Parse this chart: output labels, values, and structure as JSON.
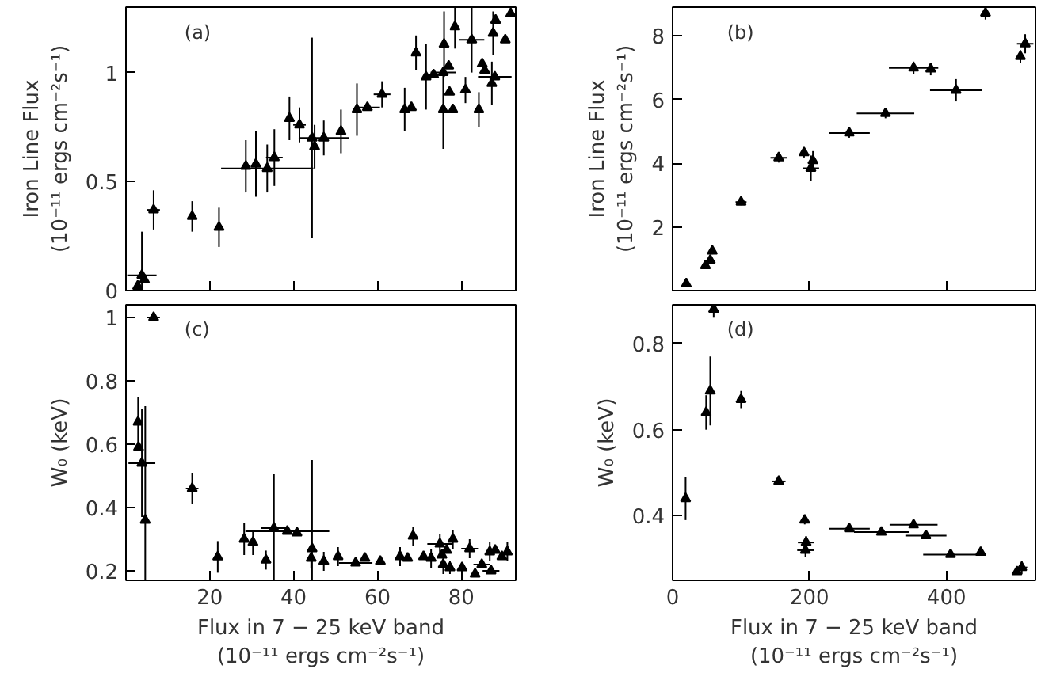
{
  "chart_data": [
    {
      "type": "scatter",
      "ylabel": "Iron Line Flux\n(10⁻¹¹ ergs cm⁻²s⁻¹)",
      "annotations": [
        "(a)"
      ],
      "xlim": [
        0,
        93
      ],
      "xticks": [
        20,
        40,
        60,
        80
      ],
      "ylim": [
        0,
        1.3
      ],
      "yticks": [
        0,
        0.5,
        1
      ],
      "tick_labels": "y",
      "grid": false,
      "marker": "triangle",
      "series": [
        {
          "color": "#000000",
          "x": [
            2.8,
            3.8,
            4.4,
            6.6,
            15.8,
            22.2,
            28.6,
            31.0,
            33.7,
            35.4,
            39.0,
            41.4,
            44.4,
            45.0,
            47.2,
            51.3,
            55.1,
            57.6,
            61.1,
            66.5,
            68.1,
            69.2,
            71.6,
            73.4,
            75.7,
            75.9,
            75.7,
            77.0,
            77.2,
            78.0,
            78.5,
            81.0,
            82.5,
            84.2,
            85.0,
            85.6,
            87.3,
            87.6,
            88.2,
            88.0,
            90.5,
            91.8
          ],
          "values": [
            0.02,
            0.07,
            0.05,
            0.37,
            0.34,
            0.29,
            0.57,
            0.58,
            0.56,
            0.61,
            0.79,
            0.76,
            0.7,
            0.66,
            0.7,
            0.73,
            0.83,
            0.84,
            0.9,
            0.83,
            0.84,
            1.09,
            0.98,
            0.99,
            0.83,
            1.13,
            1.0,
            1.03,
            0.91,
            0.83,
            1.21,
            0.92,
            1.15,
            0.83,
            1.04,
            1.01,
            0.95,
            1.18,
            1.24,
            0.98,
            1.15,
            1.27
          ],
          "errors": [
            null,
            0.2,
            null,
            0.09,
            0.07,
            0.09,
            0.12,
            0.15,
            0.11,
            0.13,
            0.1,
            0.08,
            0.46,
            0.1,
            0.08,
            0.1,
            0.12,
            null,
            0.06,
            0.1,
            null,
            0.08,
            0.15,
            null,
            0.18,
            0.15,
            null,
            null,
            null,
            null,
            0.1,
            0.06,
            0.15,
            0.08,
            null,
            null,
            0.1,
            0.1,
            null,
            null,
            null,
            null
          ],
          "xerrors": [
            null,
            3.5,
            null,
            1.5,
            null,
            null,
            null,
            null,
            11,
            2,
            null,
            1.5,
            null,
            null,
            6,
            null,
            null,
            3,
            2,
            null,
            null,
            null,
            null,
            2,
            null,
            null,
            3,
            null,
            null,
            null,
            null,
            null,
            3,
            null,
            null,
            null,
            null,
            null,
            null,
            4,
            null,
            null
          ]
        }
      ]
    },
    {
      "type": "scatter",
      "ylabel": "Iron Line Flux\n(10⁻¹¹ ergs cm⁻²s⁻¹)",
      "annotations": [
        "(b)"
      ],
      "xlim": [
        0,
        530
      ],
      "xticks": [
        0,
        200,
        400
      ],
      "ylim": [
        0,
        8.9
      ],
      "yticks": [
        2,
        4,
        6,
        8
      ],
      "tick_labels": "y",
      "grid": false,
      "marker": "triangle",
      "series": [
        {
          "color": "#000000",
          "x": [
            20,
            48,
            55,
            58,
            100,
            155,
            192,
            202,
            205,
            258,
            311,
            352,
            377,
            414,
            457,
            508,
            515
          ],
          "values": [
            0.21,
            0.78,
            0.95,
            1.24,
            2.78,
            4.17,
            4.33,
            3.84,
            4.08,
            4.95,
            5.56,
            6.99,
            6.96,
            6.29,
            8.71,
            7.35,
            7.75
          ],
          "errors": [
            null,
            null,
            null,
            0.1,
            0.1,
            0.15,
            0.15,
            0.4,
            0.3,
            0.15,
            0.15,
            0.2,
            0.2,
            0.35,
            0.2,
            0.2,
            0.3
          ],
          "xerrors": [
            null,
            5,
            null,
            null,
            8,
            12,
            null,
            12,
            null,
            30,
            42,
            36,
            null,
            38,
            null,
            null,
            12
          ]
        }
      ]
    },
    {
      "type": "scatter",
      "ylabel": "W₀ (keV)",
      "xlabel": "Flux in 7 − 25 keV band\n(10⁻¹¹ ergs cm⁻²s⁻¹)",
      "annotations": [
        "(c)"
      ],
      "xlim": [
        0,
        93
      ],
      "xticks": [
        20,
        40,
        60,
        80
      ],
      "ylim": [
        0.17,
        1.04
      ],
      "yticks": [
        0.2,
        0.4,
        0.6,
        0.8,
        1
      ],
      "grid": false,
      "marker": "triangle",
      "series": [
        {
          "color": "#000000",
          "x": [
            6.6,
            2.9,
            3.0,
            3.8,
            4.6,
            15.8,
            21.9,
            28.2,
            30.3,
            33.4,
            35.3,
            38.5,
            40.8,
            44.4,
            44.2,
            47.2,
            50.6,
            54.8,
            57.0,
            60.7,
            65.4,
            67.2,
            68.5,
            71.0,
            72.8,
            74.9,
            75.4,
            75.7,
            76.5,
            77.3,
            78.0,
            80.2,
            82.0,
            83.3,
            84.9,
            86.8,
            87.1,
            88.1,
            89.7,
            91.0
          ],
          "values": [
            1.0,
            0.67,
            0.59,
            0.54,
            0.36,
            0.46,
            0.244,
            0.3,
            0.29,
            0.234,
            0.335,
            0.325,
            0.32,
            0.27,
            0.24,
            0.23,
            0.245,
            0.225,
            0.24,
            0.23,
            0.245,
            0.24,
            0.31,
            0.245,
            0.24,
            0.285,
            0.25,
            0.22,
            0.265,
            0.21,
            0.3,
            0.21,
            0.27,
            0.19,
            0.22,
            0.26,
            0.2,
            0.265,
            0.245,
            0.26
          ],
          "errors": [
            null,
            0.08,
            null,
            0.17,
            0.36,
            0.05,
            0.05,
            0.05,
            0.04,
            0.03,
            0.17,
            null,
            null,
            0.28,
            0.03,
            0.03,
            0.03,
            null,
            null,
            null,
            0.03,
            null,
            0.03,
            null,
            0.03,
            0.03,
            null,
            0.03,
            null,
            0.02,
            0.03,
            null,
            0.03,
            null,
            null,
            0.03,
            null,
            null,
            null,
            0.03
          ],
          "xerrors": [
            1.5,
            null,
            null,
            3.2,
            null,
            1.5,
            null,
            null,
            null,
            null,
            3,
            10,
            null,
            null,
            null,
            null,
            null,
            4,
            null,
            null,
            null,
            null,
            null,
            null,
            null,
            3,
            null,
            null,
            null,
            null,
            null,
            null,
            2,
            null,
            2,
            null,
            2,
            null,
            null,
            null
          ]
        }
      ]
    },
    {
      "type": "scatter",
      "ylabel": "W₀ (keV)",
      "xlabel": "Flux in 7 − 25 keV band\n(10⁻¹¹ ergs cm⁻²s⁻¹)",
      "annotations": [
        "(d)"
      ],
      "xlim": [
        0,
        530
      ],
      "xticks": [
        0,
        200,
        400
      ],
      "ylim": [
        0.25,
        0.89
      ],
      "yticks": [
        0.4,
        0.6,
        0.8
      ],
      "grid": false,
      "marker": "triangle",
      "series": [
        {
          "color": "#000000",
          "x": [
            19,
            49,
            55,
            60,
            100,
            155,
            193,
            195,
            194,
            258,
            305,
            352,
            370,
            406,
            450,
            503,
            510
          ],
          "values": [
            0.44,
            0.64,
            0.69,
            0.88,
            0.67,
            0.48,
            0.39,
            0.338,
            0.32,
            0.37,
            0.362,
            0.379,
            0.354,
            0.31,
            0.315,
            0.27,
            0.28
          ],
          "errors": [
            0.05,
            0.04,
            0.08,
            0.02,
            0.02,
            null,
            0.01,
            0.015,
            0.015,
            null,
            null,
            null,
            null,
            null,
            null,
            null,
            0.015
          ],
          "xerrors": [
            null,
            5,
            5,
            null,
            6,
            10,
            null,
            12,
            12,
            30,
            40,
            35,
            30,
            40,
            null,
            null,
            8
          ]
        }
      ]
    }
  ]
}
